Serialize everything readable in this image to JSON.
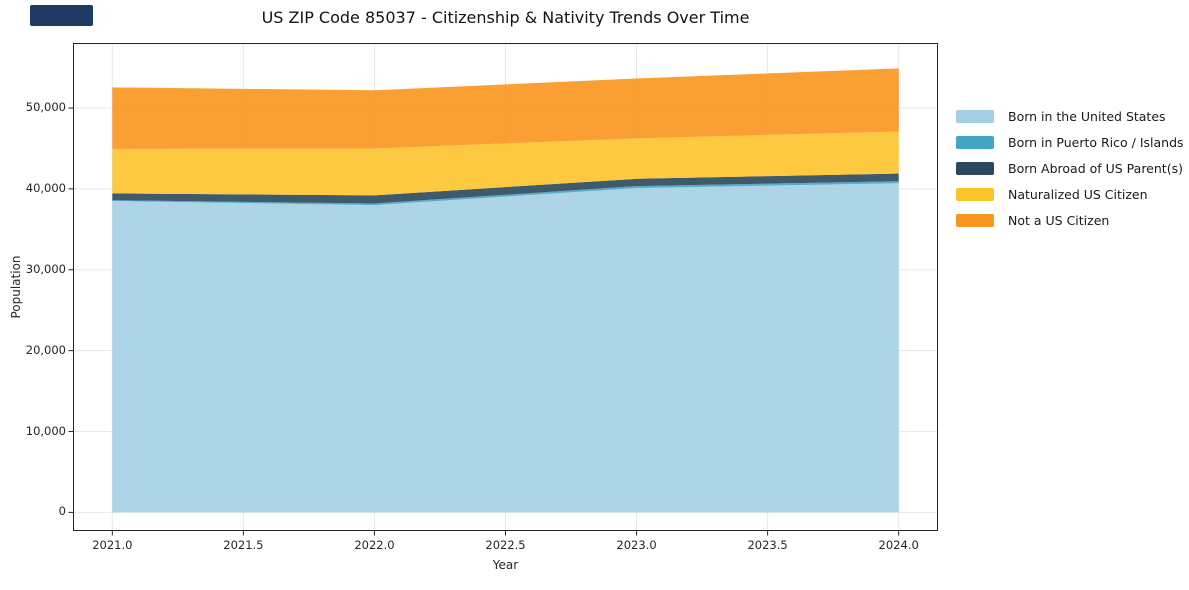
{
  "corner_accent": {
    "color": "#1F3B63"
  },
  "chart_data": {
    "type": "area",
    "stacked": true,
    "title": "US ZIP Code 85037 - Citizenship & Nativity Trends Over Time",
    "xlabel": "Year",
    "ylabel": "Population",
    "x": [
      2021,
      2022,
      2023,
      2024
    ],
    "series": [
      {
        "name": "Born in the United States",
        "color": "#A4CFE4",
        "values": [
          38500,
          38000,
          40100,
          40700
        ]
      },
      {
        "name": "Born in Puerto Rico / Islands",
        "color": "#44A5C4",
        "values": [
          100,
          200,
          250,
          250
        ]
      },
      {
        "name": "Born Abroad of US Parent(s)",
        "color": "#29485C",
        "values": [
          850,
          1000,
          900,
          950
        ]
      },
      {
        "name": "Naturalized US Citizen",
        "color": "#FDC32C",
        "values": [
          5500,
          5800,
          5000,
          5200
        ]
      },
      {
        "name": "Not a US Citizen",
        "color": "#F8951E",
        "values": [
          7600,
          7200,
          7400,
          7800
        ]
      }
    ],
    "stacked_totals": [
      52550,
      52200,
      53650,
      54900
    ],
    "xlim": [
      2020.85,
      2024.15
    ],
    "ylim": [
      -2300,
      58040
    ],
    "x_ticks": [
      {
        "value": 2021.0,
        "label": "2021.0"
      },
      {
        "value": 2021.5,
        "label": "2021.5"
      },
      {
        "value": 2022.0,
        "label": "2022.0"
      },
      {
        "value": 2022.5,
        "label": "2022.5"
      },
      {
        "value": 2023.0,
        "label": "2023.0"
      },
      {
        "value": 2023.5,
        "label": "2023.5"
      },
      {
        "value": 2024.0,
        "label": "2024.0"
      }
    ],
    "y_ticks": [
      {
        "value": 0,
        "label": "0"
      },
      {
        "value": 10000,
        "label": "10,000"
      },
      {
        "value": 20000,
        "label": "20,000"
      },
      {
        "value": 30000,
        "label": "30,000"
      },
      {
        "value": 40000,
        "label": "40,000"
      },
      {
        "value": 50000,
        "label": "50,000"
      }
    ],
    "grid": true,
    "grid_color": "#e8e8e8",
    "spine_color": "#262626",
    "fill_opacity": 0.9,
    "legend_position": "right"
  }
}
